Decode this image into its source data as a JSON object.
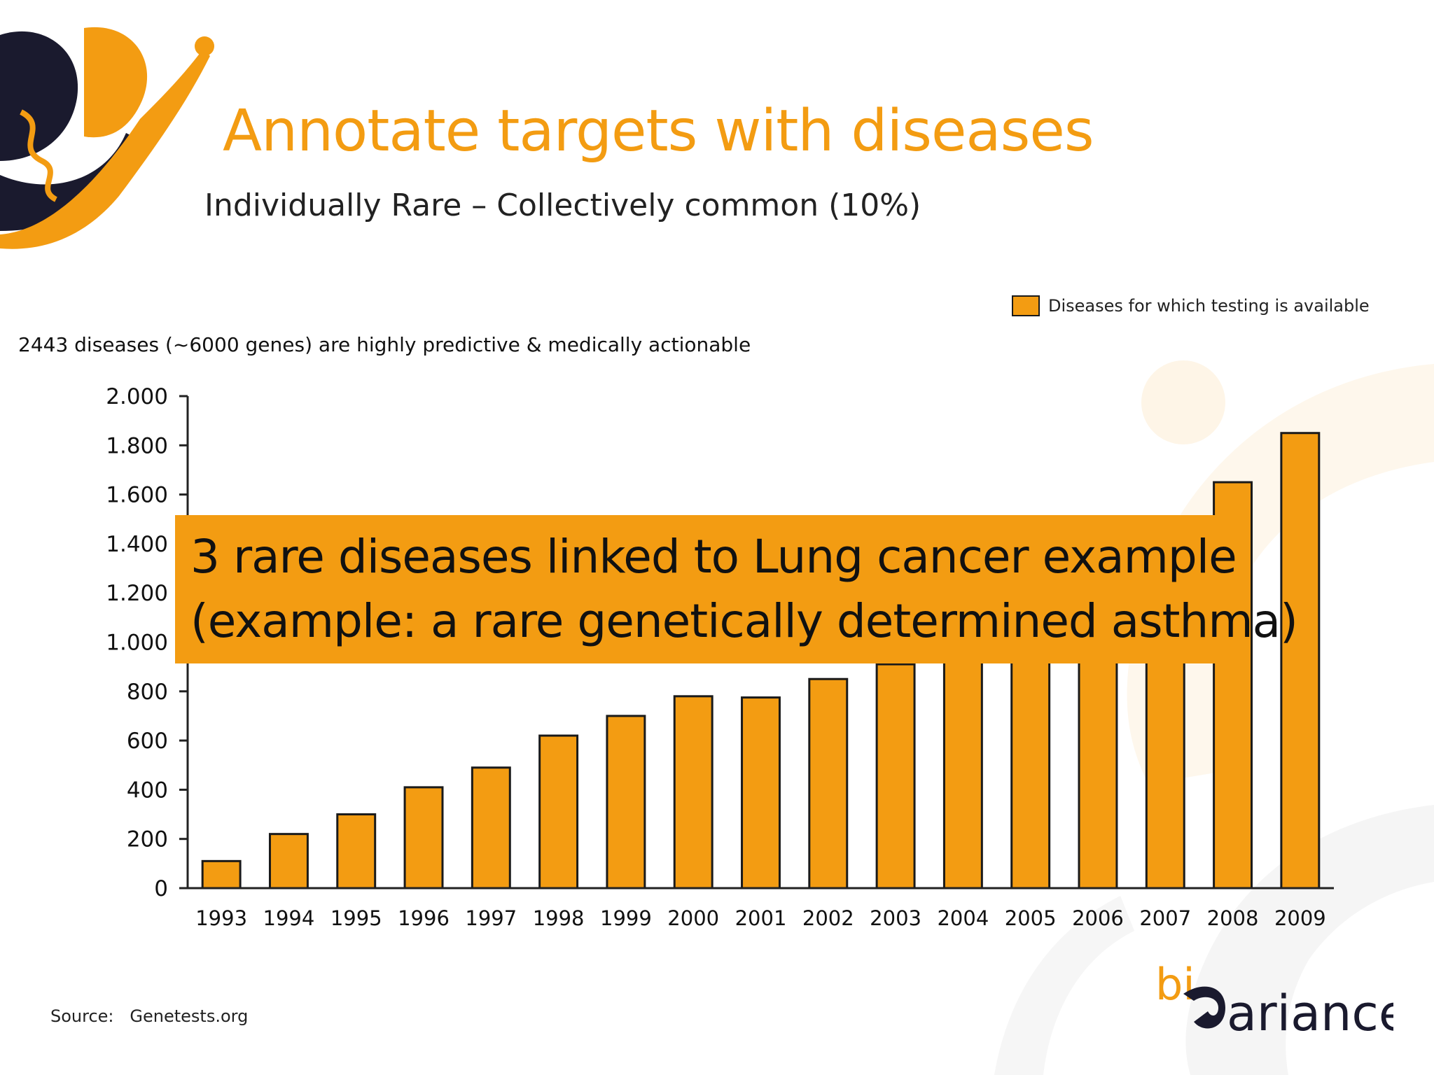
{
  "slide": {
    "title": "Annotate targets with diseases",
    "subtitle": "Individually Rare – Collectively common (10%)",
    "chart_note": "2443 diseases (~6000 genes) are highly predictive & medically actionable",
    "callout_line1": "3 rare diseases linked to Lung cancer example",
    "callout_line2": "(example: a rare genetically determined asthma)",
    "source": "Source:   Genetests.org",
    "logo_text_bi": "bi",
    "logo_text_rest": "ariance"
  },
  "colors": {
    "accent": "#f39c12",
    "bar_outline": "#1a1a1a",
    "text": "#222222"
  },
  "chart_data": {
    "type": "bar",
    "categories": [
      "1993",
      "1994",
      "1995",
      "1996",
      "1997",
      "1998",
      "1999",
      "2000",
      "2001",
      "2002",
      "2003",
      "2004",
      "2005",
      "2006",
      "2007",
      "2008",
      "2009"
    ],
    "series": [
      {
        "name": "Diseases for which testing is available",
        "values": [
          110,
          220,
          300,
          410,
          490,
          620,
          700,
          780,
          775,
          850,
          910,
          1000,
          1130,
          1260,
          1380,
          1650,
          1850
        ]
      }
    ],
    "title": "",
    "xlabel": "",
    "ylabel": "",
    "ylim": [
      0,
      2000
    ],
    "yticks": [
      0,
      200,
      400,
      600,
      800,
      1000,
      1200,
      1400,
      1600,
      1800,
      2000
    ],
    "ytick_labels": [
      "0",
      "200",
      "400",
      "600",
      "800",
      "1.000",
      "1.200",
      "1.400",
      "1.600",
      "1.800",
      "2.000"
    ],
    "grid": false,
    "legend_position": "top-right"
  }
}
